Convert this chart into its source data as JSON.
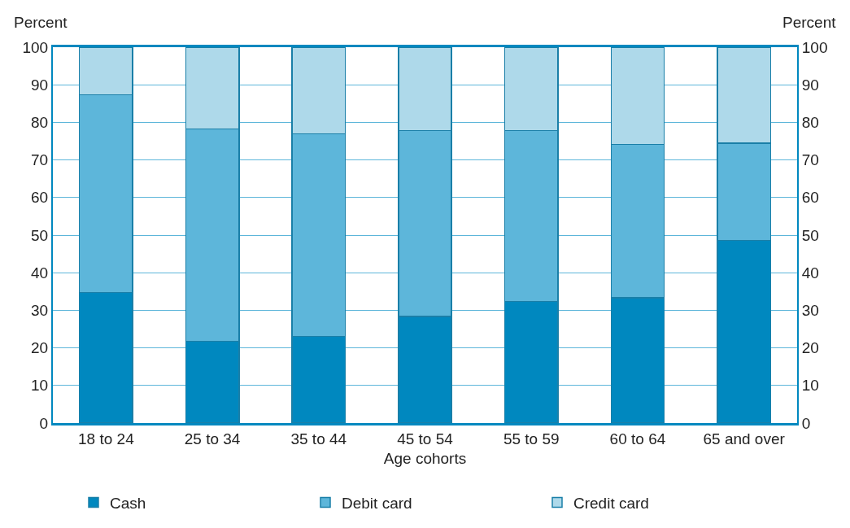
{
  "chart_data": {
    "type": "bar",
    "stacked": true,
    "xlabel": "Age cohorts",
    "ylabel": "Percent",
    "y2label": "Percent",
    "categories": [
      "18 to 24",
      "25 to 34",
      "35 to 44",
      "45 to 54",
      "55 to 59",
      "60 to 64",
      "65 and over"
    ],
    "series": [
      {
        "name": "Cash",
        "color": "#0088bf",
        "values": [
          34.7,
          21.8,
          23.1,
          28.4,
          32.4,
          33.3,
          48.6
        ]
      },
      {
        "name": "Debit card",
        "color": "#5db6da",
        "values": [
          52.6,
          56.4,
          53.8,
          49.4,
          45.4,
          40.8,
          25.9
        ]
      },
      {
        "name": "Credit card",
        "color": "#aed9ea",
        "values": [
          12.7,
          21.8,
          23.1,
          22.2,
          22.2,
          25.9,
          25.5
        ]
      }
    ],
    "ylim": [
      0,
      100
    ],
    "yticks": [
      0,
      10,
      20,
      30,
      40,
      50,
      60,
      70,
      80,
      90,
      100
    ],
    "y2lim": [
      0,
      100
    ],
    "y2ticks": [
      0,
      10,
      20,
      30,
      40,
      50,
      60,
      70,
      80,
      90,
      100
    ],
    "grid": "y",
    "legend": "bottom"
  }
}
